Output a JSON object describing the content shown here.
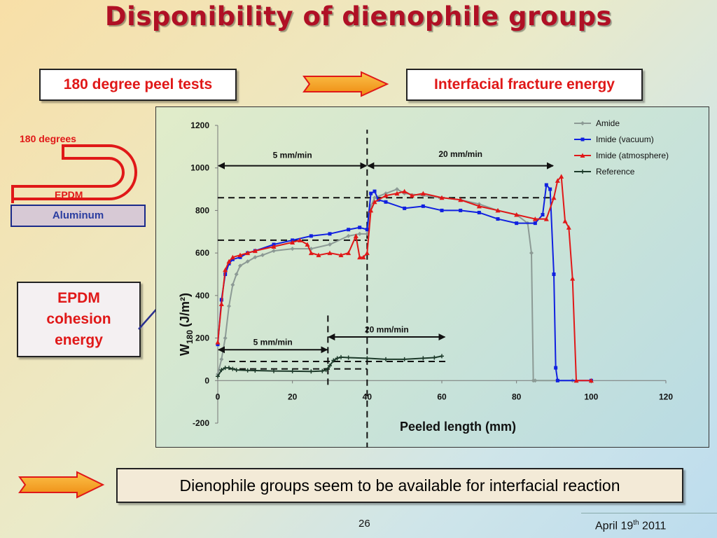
{
  "slide": {
    "title": "Disponibility of dienophile groups",
    "box_left": "180 degree peel tests",
    "box_right": "Interfacial fracture energy",
    "diagram": {
      "angle_label": "180 degrees",
      "layer_top": "EPDM",
      "layer_bottom": "Aluminum"
    },
    "callout": "EPDM cohesion energy",
    "conclusion": "Dienophile groups seem to be available for interfacial reaction",
    "page_number": "26",
    "date_main": "April 19",
    "date_sup": "th",
    "date_year": " 2011",
    "colors": {
      "title": "#b01025",
      "arrow_fill": "#f39a18",
      "arrow_stroke": "#e01818"
    }
  },
  "chart_data": {
    "type": "line",
    "xlabel": "Peeled length (mm)",
    "ylabel_main": "W",
    "ylabel_sub": "180",
    "ylabel_unit": "(J/m²)",
    "xlim": [
      0,
      120
    ],
    "ylim": [
      -200,
      1200
    ],
    "xticks": [
      0,
      20,
      40,
      60,
      80,
      100,
      120
    ],
    "yticks": [
      -200,
      0,
      200,
      400,
      600,
      800,
      1000,
      1200
    ],
    "grid": false,
    "legend_position": "top-right",
    "annotations": {
      "upper_rate_left": "5 mm/min",
      "upper_rate_right": "20 mm/min",
      "lower_rate_left": "5 mm/min",
      "lower_rate_right": "20 mm/min"
    },
    "series": [
      {
        "name": "Amide",
        "color": "#8c9a95",
        "marker": "diamond",
        "x": [
          0,
          1,
          2,
          3,
          4,
          5,
          6,
          8,
          10,
          12,
          15,
          20,
          25,
          30,
          35,
          38,
          40,
          41,
          42,
          45,
          48,
          50,
          55,
          60,
          65,
          70,
          75,
          80,
          83,
          84,
          84.5,
          85,
          95
        ],
        "y": [
          30,
          100,
          200,
          350,
          450,
          500,
          540,
          560,
          580,
          590,
          610,
          620,
          620,
          640,
          680,
          690,
          690,
          820,
          860,
          880,
          900,
          880,
          870,
          860,
          850,
          830,
          800,
          780,
          740,
          600,
          0,
          0,
          0
        ]
      },
      {
        "name": "Imide (vacuum)",
        "color": "#1020e0",
        "marker": "square",
        "x": [
          0,
          1,
          2,
          3,
          4,
          6,
          8,
          10,
          15,
          20,
          25,
          30,
          35,
          38,
          40,
          41,
          42,
          43,
          45,
          50,
          55,
          60,
          65,
          70,
          75,
          80,
          85,
          87,
          88,
          89,
          90,
          90.5,
          91,
          100
        ],
        "y": [
          170,
          380,
          500,
          550,
          570,
          580,
          600,
          610,
          640,
          660,
          680,
          690,
          710,
          720,
          710,
          880,
          890,
          850,
          840,
          810,
          820,
          800,
          800,
          790,
          760,
          740,
          740,
          780,
          920,
          900,
          500,
          60,
          0,
          0
        ]
      },
      {
        "name": "Imide (atmosphere)",
        "color": "#e01818",
        "marker": "triangle",
        "x": [
          0,
          1,
          2,
          3,
          4,
          6,
          8,
          10,
          15,
          20,
          22,
          24,
          25,
          27,
          30,
          33,
          35,
          37,
          38,
          39,
          40,
          41,
          42,
          45,
          48,
          50,
          52,
          55,
          60,
          65,
          70,
          75,
          80,
          85,
          88,
          90,
          91,
          92,
          93,
          94,
          95,
          96,
          100
        ],
        "y": [
          180,
          360,
          520,
          560,
          580,
          590,
          600,
          610,
          630,
          650,
          660,
          640,
          600,
          590,
          600,
          590,
          600,
          680,
          580,
          580,
          600,
          800,
          840,
          870,
          880,
          890,
          870,
          880,
          860,
          850,
          820,
          800,
          780,
          760,
          760,
          860,
          940,
          960,
          750,
          720,
          480,
          0,
          0
        ]
      },
      {
        "name": "Reference",
        "color": "#1d3a2a",
        "marker": "plus",
        "x": [
          0,
          1,
          2,
          3,
          4,
          5,
          8,
          10,
          15,
          20,
          25,
          28,
          29,
          30,
          31,
          32,
          33,
          35,
          40,
          45,
          50,
          55,
          58,
          60
        ],
        "y": [
          20,
          50,
          60,
          60,
          55,
          50,
          48,
          47,
          45,
          44,
          43,
          45,
          50,
          70,
          95,
          105,
          110,
          108,
          105,
          100,
          100,
          105,
          108,
          115
        ]
      }
    ],
    "dashed_lines": [
      {
        "x1": 40,
        "y1": -420,
        "x2": 40,
        "y2": 1180
      },
      {
        "x1": 0,
        "y1": 660,
        "x2": 40,
        "y2": 660
      },
      {
        "x1": 0,
        "y1": 860,
        "x2": 90,
        "y2": 860
      },
      {
        "x1": 29.5,
        "y1": -20,
        "x2": 29.5,
        "y2": 320
      },
      {
        "x1": 3,
        "y1": 90,
        "x2": 62,
        "y2": 90
      },
      {
        "x1": 3,
        "y1": 55,
        "x2": 40,
        "y2": 55
      }
    ],
    "range_arrows": [
      {
        "x1": 0,
        "x2": 40,
        "y": 1010,
        "label_key": "upper_rate_left",
        "label_y": 1060
      },
      {
        "x1": 40,
        "x2": 90,
        "y": 1010,
        "label_key": "upper_rate_right",
        "label_y": 1065
      },
      {
        "x1": 0,
        "x2": 29.5,
        "y": 145,
        "label_key": "lower_rate_left",
        "label_y": 180
      },
      {
        "x1": 29.5,
        "x2": 61,
        "y": 205,
        "label_key": "lower_rate_right",
        "label_y": 240
      }
    ]
  }
}
